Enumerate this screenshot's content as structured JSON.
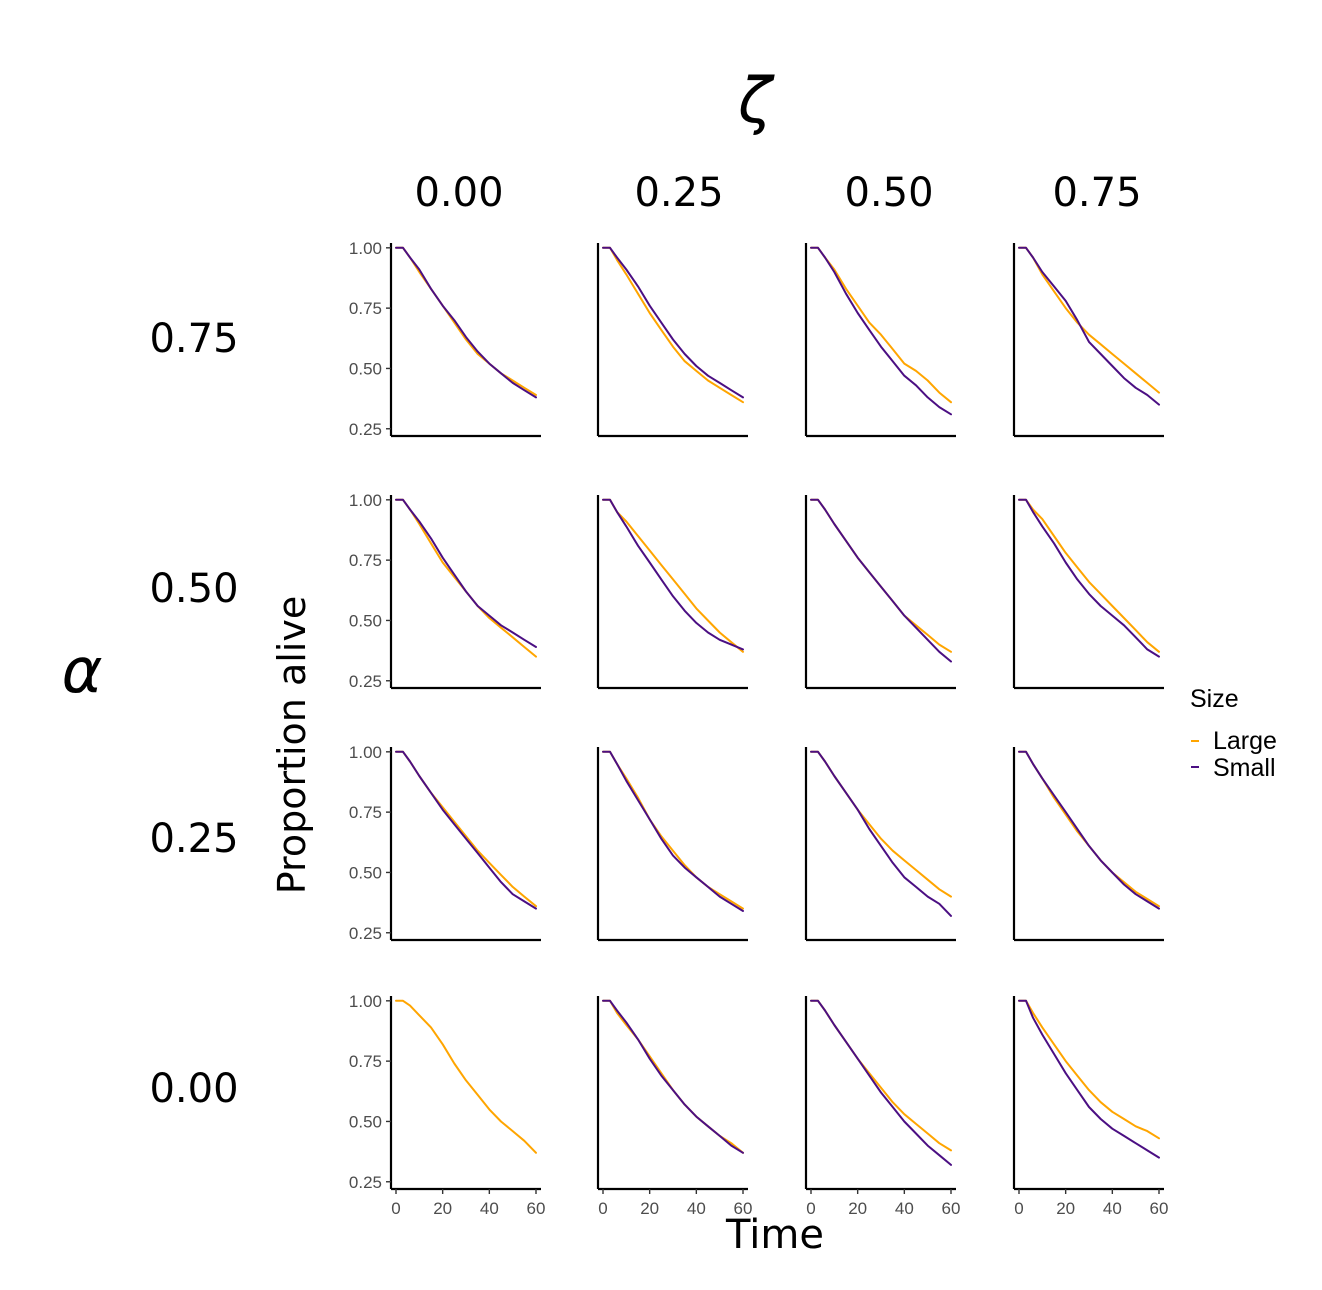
{
  "chart_data": {
    "type": "line",
    "title": "",
    "xlabel": "Time",
    "ylabel": "Proportion alive",
    "col_facet_label": "ζ",
    "row_facet_label": "α",
    "col_values": [
      "0.00",
      "0.25",
      "0.50",
      "0.75"
    ],
    "row_values": [
      "0.75",
      "0.50",
      "0.25",
      "0.00"
    ],
    "xlim": [
      0,
      60
    ],
    "ylim": [
      0.22,
      1.02
    ],
    "x_ticks": [
      "0",
      "20",
      "40",
      "60"
    ],
    "y_ticks": [
      "0.25",
      "0.50",
      "0.75",
      "1.00"
    ],
    "x_tick_values": [
      0,
      20,
      40,
      60
    ],
    "y_tick_values": [
      0.25,
      0.5,
      0.75,
      1.0
    ],
    "grid": false,
    "legend": {
      "title": "Size",
      "placement": "right",
      "entries": [
        {
          "name": "Large",
          "color": "#FFA500"
        },
        {
          "name": "Small",
          "color": "#4B0F83"
        }
      ]
    },
    "x": [
      0,
      3,
      6,
      10,
      15,
      20,
      25,
      30,
      35,
      40,
      45,
      50,
      55,
      60
    ],
    "panels": [
      {
        "row": "0.75",
        "col": "0.00",
        "series": [
          {
            "name": "Large",
            "values": [
              1.0,
              1.0,
              0.96,
              0.9,
              0.83,
              0.76,
              0.69,
              0.62,
              0.56,
              0.52,
              0.48,
              0.45,
              0.42,
              0.39
            ]
          },
          {
            "name": "Small",
            "values": [
              1.0,
              1.0,
              0.96,
              0.91,
              0.83,
              0.76,
              0.7,
              0.63,
              0.57,
              0.52,
              0.48,
              0.44,
              0.41,
              0.38
            ]
          }
        ]
      },
      {
        "row": "0.75",
        "col": "0.25",
        "series": [
          {
            "name": "Large",
            "values": [
              1.0,
              1.0,
              0.95,
              0.89,
              0.81,
              0.73,
              0.66,
              0.59,
              0.53,
              0.49,
              0.45,
              0.42,
              0.39,
              0.36
            ]
          },
          {
            "name": "Small",
            "values": [
              1.0,
              1.0,
              0.96,
              0.91,
              0.84,
              0.76,
              0.69,
              0.62,
              0.56,
              0.51,
              0.47,
              0.44,
              0.41,
              0.38
            ]
          }
        ]
      },
      {
        "row": "0.75",
        "col": "0.50",
        "series": [
          {
            "name": "Large",
            "values": [
              1.0,
              1.0,
              0.96,
              0.91,
              0.83,
              0.76,
              0.69,
              0.64,
              0.58,
              0.52,
              0.49,
              0.45,
              0.4,
              0.36
            ]
          },
          {
            "name": "Small",
            "values": [
              1.0,
              1.0,
              0.96,
              0.9,
              0.81,
              0.73,
              0.66,
              0.59,
              0.53,
              0.47,
              0.43,
              0.38,
              0.34,
              0.31
            ]
          }
        ]
      },
      {
        "row": "0.75",
        "col": "0.75",
        "series": [
          {
            "name": "Large",
            "values": [
              1.0,
              1.0,
              0.96,
              0.89,
              0.82,
              0.75,
              0.69,
              0.64,
              0.6,
              0.56,
              0.52,
              0.48,
              0.44,
              0.4
            ]
          },
          {
            "name": "Small",
            "values": [
              1.0,
              1.0,
              0.96,
              0.9,
              0.84,
              0.78,
              0.7,
              0.61,
              0.56,
              0.51,
              0.46,
              0.42,
              0.39,
              0.35
            ]
          }
        ]
      },
      {
        "row": "0.50",
        "col": "0.00",
        "series": [
          {
            "name": "Large",
            "values": [
              1.0,
              1.0,
              0.96,
              0.9,
              0.82,
              0.74,
              0.68,
              0.62,
              0.56,
              0.51,
              0.47,
              0.43,
              0.39,
              0.35
            ]
          },
          {
            "name": "Small",
            "values": [
              1.0,
              1.0,
              0.96,
              0.91,
              0.84,
              0.76,
              0.69,
              0.62,
              0.56,
              0.52,
              0.48,
              0.45,
              0.42,
              0.39
            ]
          }
        ]
      },
      {
        "row": "0.50",
        "col": "0.25",
        "series": [
          {
            "name": "Large",
            "values": [
              1.0,
              1.0,
              0.95,
              0.91,
              0.85,
              0.79,
              0.73,
              0.67,
              0.61,
              0.55,
              0.5,
              0.45,
              0.41,
              0.37
            ]
          },
          {
            "name": "Small",
            "values": [
              1.0,
              1.0,
              0.95,
              0.89,
              0.81,
              0.74,
              0.67,
              0.6,
              0.54,
              0.49,
              0.45,
              0.42,
              0.4,
              0.38
            ]
          }
        ]
      },
      {
        "row": "0.50",
        "col": "0.50",
        "series": [
          {
            "name": "Large",
            "values": [
              1.0,
              1.0,
              0.96,
              0.9,
              0.83,
              0.76,
              0.7,
              0.64,
              0.58,
              0.52,
              0.48,
              0.44,
              0.4,
              0.37
            ]
          },
          {
            "name": "Small",
            "values": [
              1.0,
              1.0,
              0.96,
              0.9,
              0.83,
              0.76,
              0.7,
              0.64,
              0.58,
              0.52,
              0.47,
              0.42,
              0.37,
              0.33
            ]
          }
        ]
      },
      {
        "row": "0.50",
        "col": "0.75",
        "series": [
          {
            "name": "Large",
            "values": [
              1.0,
              1.0,
              0.96,
              0.92,
              0.85,
              0.78,
              0.72,
              0.66,
              0.61,
              0.56,
              0.51,
              0.46,
              0.41,
              0.37
            ]
          },
          {
            "name": "Small",
            "values": [
              1.0,
              1.0,
              0.95,
              0.89,
              0.82,
              0.74,
              0.67,
              0.61,
              0.56,
              0.52,
              0.48,
              0.43,
              0.38,
              0.35
            ]
          }
        ]
      },
      {
        "row": "0.25",
        "col": "0.00",
        "series": [
          {
            "name": "Large",
            "values": [
              1.0,
              1.0,
              0.96,
              0.9,
              0.83,
              0.77,
              0.71,
              0.65,
              0.59,
              0.54,
              0.49,
              0.44,
              0.4,
              0.36
            ]
          },
          {
            "name": "Small",
            "values": [
              1.0,
              1.0,
              0.96,
              0.9,
              0.83,
              0.76,
              0.7,
              0.64,
              0.58,
              0.52,
              0.46,
              0.41,
              0.38,
              0.35
            ]
          }
        ]
      },
      {
        "row": "0.25",
        "col": "0.25",
        "series": [
          {
            "name": "Large",
            "values": [
              1.0,
              1.0,
              0.95,
              0.89,
              0.81,
              0.72,
              0.65,
              0.59,
              0.53,
              0.48,
              0.44,
              0.41,
              0.38,
              0.35
            ]
          },
          {
            "name": "Small",
            "values": [
              1.0,
              1.0,
              0.95,
              0.88,
              0.8,
              0.72,
              0.64,
              0.57,
              0.52,
              0.48,
              0.44,
              0.4,
              0.37,
              0.34
            ]
          }
        ]
      },
      {
        "row": "0.25",
        "col": "0.50",
        "series": [
          {
            "name": "Large",
            "values": [
              1.0,
              1.0,
              0.96,
              0.9,
              0.83,
              0.76,
              0.7,
              0.64,
              0.59,
              0.55,
              0.51,
              0.47,
              0.43,
              0.4
            ]
          },
          {
            "name": "Small",
            "values": [
              1.0,
              1.0,
              0.96,
              0.9,
              0.83,
              0.76,
              0.68,
              0.61,
              0.54,
              0.48,
              0.44,
              0.4,
              0.37,
              0.32
            ]
          }
        ]
      },
      {
        "row": "0.25",
        "col": "0.75",
        "series": [
          {
            "name": "Large",
            "values": [
              1.0,
              1.0,
              0.95,
              0.89,
              0.81,
              0.74,
              0.67,
              0.61,
              0.55,
              0.5,
              0.46,
              0.42,
              0.39,
              0.36
            ]
          },
          {
            "name": "Small",
            "values": [
              1.0,
              1.0,
              0.95,
              0.89,
              0.82,
              0.75,
              0.68,
              0.61,
              0.55,
              0.5,
              0.45,
              0.41,
              0.38,
              0.35
            ]
          }
        ]
      },
      {
        "row": "0.00",
        "col": "0.00",
        "series": [
          {
            "name": "Large",
            "values": [
              1.0,
              1.0,
              0.98,
              0.94,
              0.89,
              0.82,
              0.74,
              0.67,
              0.61,
              0.55,
              0.5,
              0.46,
              0.42,
              0.37
            ]
          }
        ]
      },
      {
        "row": "0.00",
        "col": "0.25",
        "series": [
          {
            "name": "Large",
            "values": [
              1.0,
              1.0,
              0.95,
              0.9,
              0.84,
              0.77,
              0.7,
              0.63,
              0.57,
              0.52,
              0.48,
              0.44,
              0.41,
              0.37
            ]
          },
          {
            "name": "Small",
            "values": [
              1.0,
              1.0,
              0.96,
              0.91,
              0.84,
              0.76,
              0.69,
              0.63,
              0.57,
              0.52,
              0.48,
              0.44,
              0.4,
              0.37
            ]
          }
        ]
      },
      {
        "row": "0.00",
        "col": "0.50",
        "series": [
          {
            "name": "Large",
            "values": [
              1.0,
              1.0,
              0.96,
              0.9,
              0.83,
              0.76,
              0.7,
              0.64,
              0.58,
              0.53,
              0.49,
              0.45,
              0.41,
              0.38
            ]
          },
          {
            "name": "Small",
            "values": [
              1.0,
              1.0,
              0.96,
              0.9,
              0.83,
              0.76,
              0.69,
              0.62,
              0.56,
              0.5,
              0.45,
              0.4,
              0.36,
              0.32
            ]
          }
        ]
      },
      {
        "row": "0.00",
        "col": "0.75",
        "series": [
          {
            "name": "Large",
            "values": [
              1.0,
              1.0,
              0.95,
              0.89,
              0.82,
              0.75,
              0.69,
              0.63,
              0.58,
              0.54,
              0.51,
              0.48,
              0.46,
              0.43
            ]
          },
          {
            "name": "Small",
            "values": [
              1.0,
              1.0,
              0.93,
              0.86,
              0.78,
              0.7,
              0.63,
              0.56,
              0.51,
              0.47,
              0.44,
              0.41,
              0.38,
              0.35
            ]
          }
        ]
      }
    ]
  }
}
